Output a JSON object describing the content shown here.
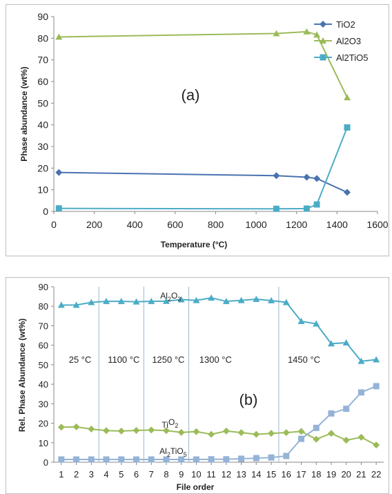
{
  "chart_data": [
    {
      "type": "line",
      "title": "",
      "annotation": "(a)",
      "xlabel": "Temperature (°C)",
      "ylabel": "Phase abundance (wt%)",
      "xlim": [
        0,
        1600
      ],
      "ylim": [
        0,
        90
      ],
      "xticks": [
        "0",
        "200",
        "400",
        "600",
        "800",
        "1000",
        "1200",
        "1400",
        "1600"
      ],
      "yticks": [
        "0",
        "10",
        "20",
        "30",
        "40",
        "50",
        "60",
        "70",
        "80",
        "90"
      ],
      "grid": false,
      "legend": "top-right",
      "series": [
        {
          "name": "TiO2",
          "marker": "diamond",
          "color": "#4a72b0",
          "x": [
            25,
            1100,
            1250,
            1300,
            1450
          ],
          "y": [
            18,
            16.5,
            15.8,
            15.2,
            8.8
          ]
        },
        {
          "name": "Al2O3",
          "marker": "triangle",
          "color": "#9bbb59",
          "x": [
            25,
            1100,
            1250,
            1300,
            1450
          ],
          "y": [
            80.6,
            82.2,
            83,
            81.6,
            52.6
          ]
        },
        {
          "name": "Al2TiO5",
          "marker": "square",
          "color": "#4bacc6",
          "x": [
            25,
            1100,
            1250,
            1300,
            1450
          ],
          "y": [
            1.4,
            1.2,
            1.3,
            3.2,
            38.8
          ]
        }
      ]
    },
    {
      "type": "line",
      "title": "",
      "annotation": "(b)",
      "xlabel": "File order",
      "ylabel": "Rel. Phase Abundance (wt%)",
      "xlim": [
        1,
        22
      ],
      "ylim": [
        0,
        90
      ],
      "categories": [
        "1",
        "2",
        "3",
        "4",
        "5",
        "6",
        "7",
        "8",
        "9",
        "10",
        "11",
        "12",
        "13",
        "14",
        "15",
        "16",
        "17",
        "18",
        "19",
        "20",
        "21",
        "22"
      ],
      "yticks": [
        "0",
        "10",
        "20",
        "30",
        "40",
        "50",
        "60",
        "70",
        "80",
        "90"
      ],
      "grid": false,
      "dividers": [
        3.5,
        6.5,
        9.5,
        15.5
      ],
      "region_labels": [
        {
          "text": "25 °C",
          "x": 1.5
        },
        {
          "text": "1100 °C",
          "x": 4.1
        },
        {
          "text": "1250 °C",
          "x": 7.05
        },
        {
          "text": "1300 °C",
          "x": 10.2
        },
        {
          "text": "1450 °C",
          "x": 16.1
        }
      ],
      "series": [
        {
          "name": "Al2O3",
          "label_main": "Al",
          "label_sub1": "2",
          "label_mid": "O",
          "label_sub2": "3",
          "label_x": 7.6,
          "label_y": 84,
          "marker": "triangle",
          "color": "#4bacc6",
          "values": [
            80.6,
            80.6,
            82,
            82.5,
            82.5,
            82.3,
            82.5,
            82.6,
            83.4,
            83,
            84.3,
            82.5,
            83,
            83.6,
            82.9,
            82,
            72.3,
            71,
            60.8,
            61.3,
            51.8,
            52.6
          ]
        },
        {
          "name": "TiO2",
          "label_main": "Ti",
          "label_mid": "O",
          "label_sub2": "2",
          "label_x": 7.7,
          "label_y": 17.8,
          "marker": "diamond",
          "color": "#9bbb59",
          "values": [
            18,
            18.1,
            17,
            16.2,
            16,
            16.3,
            16.5,
            16.2,
            15.3,
            15.7,
            14.3,
            16,
            15.2,
            14.3,
            14.8,
            15.2,
            15.8,
            11.8,
            14.8,
            11.3,
            12.8,
            8.8
          ]
        },
        {
          "name": "Al2TiO5",
          "label_main": "Al",
          "label_sub1": "2",
          "label_mid": "TiO",
          "label_sub2": "5",
          "label_x": 7.55,
          "label_y": 4.3,
          "marker": "square",
          "color": "#95b3d7",
          "values": [
            1.4,
            1.4,
            1.4,
            1.4,
            1.4,
            1.4,
            1.4,
            1.4,
            1.4,
            1.4,
            1.5,
            1.5,
            1.8,
            2.1,
            2.4,
            3.2,
            12,
            17.6,
            25,
            27.4,
            35.8,
            39
          ]
        }
      ]
    }
  ]
}
